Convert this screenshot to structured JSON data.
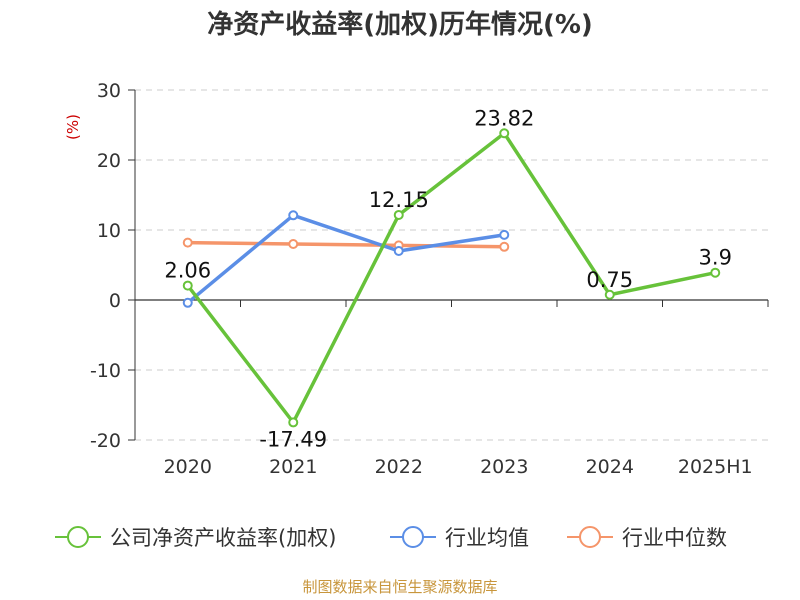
{
  "chart_data": {
    "type": "line",
    "title": "净资产收益率(加权)历年情况(%)",
    "unit_label": "(%)",
    "categories": [
      "2020",
      "2021",
      "2022",
      "2023",
      "2024",
      "2025H1"
    ],
    "ylim": [
      -20,
      30
    ],
    "yticks": [
      "30",
      "20",
      "10",
      "0",
      "-10",
      "-20"
    ],
    "grid": true,
    "legend_position": "bottom",
    "series": [
      {
        "name": "公司净资产收益率(加权)",
        "color": "#67c23a",
        "values": [
          2.06,
          -17.49,
          12.15,
          23.82,
          0.75,
          3.9
        ],
        "labels": [
          "2.06",
          "-17.49",
          "12.15",
          "23.82",
          "0.75",
          "3.9"
        ]
      },
      {
        "name": "行业均值",
        "color": "#5b8ee6",
        "values": [
          -0.4,
          12.1,
          7.0,
          9.3,
          null,
          null
        ]
      },
      {
        "name": "行业中位数",
        "color": "#f5956a",
        "values": [
          8.2,
          8.0,
          7.8,
          7.6,
          null,
          null
        ]
      }
    ],
    "source": "制图数据来自恒生聚源数据库"
  }
}
